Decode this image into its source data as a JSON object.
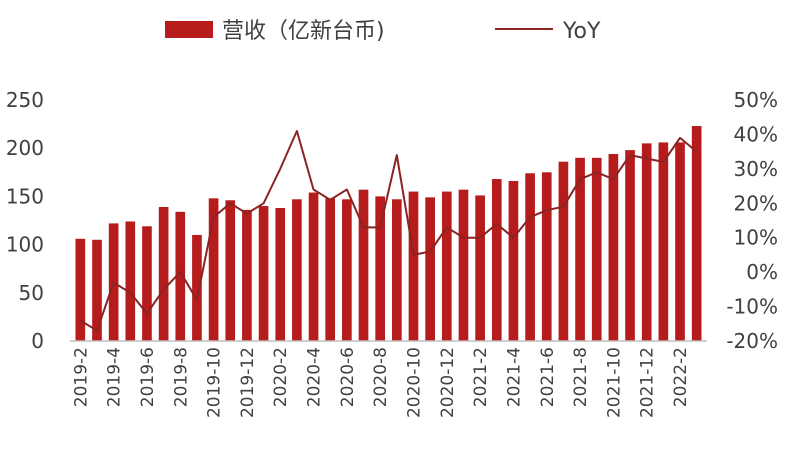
{
  "chart_data": {
    "type": "bar",
    "legend_placement": "top-center",
    "grid": false,
    "colors": {
      "bar": "#b71c1c",
      "line": "#8b2323",
      "text": "#404040",
      "axis": "#bfbfbf"
    },
    "x": [
      "2019-2",
      "2019-3",
      "2019-4",
      "2019-5",
      "2019-6",
      "2019-7",
      "2019-8",
      "2019-9",
      "2019-10",
      "2019-11",
      "2019-12",
      "2020-1",
      "2020-2",
      "2020-3",
      "2020-4",
      "2020-5",
      "2020-6",
      "2020-7",
      "2020-8",
      "2020-9",
      "2020-10",
      "2020-11",
      "2020-12",
      "2021-1",
      "2021-2",
      "2021-3",
      "2021-4",
      "2021-5",
      "2021-6",
      "2021-7",
      "2021-8",
      "2021-9",
      "2021-10",
      "2021-11",
      "2021-12",
      "2022-1",
      "2022-2",
      "2022-3"
    ],
    "x_tick_labels": [
      "2019-2",
      "2019-4",
      "2019-6",
      "2019-8",
      "2019-10",
      "2019-12",
      "2020-2",
      "2020-4",
      "2020-6",
      "2020-8",
      "2020-10",
      "2020-12",
      "2021-2",
      "2021-4",
      "2021-6",
      "2021-8",
      "2021-10",
      "2021-12",
      "2022-2"
    ],
    "series": [
      {
        "name": "营收（亿新台币)",
        "type": "bar",
        "axis": "left",
        "values": [
          106,
          105,
          122,
          124,
          119,
          139,
          134,
          110,
          148,
          146,
          136,
          140,
          138,
          147,
          154,
          148,
          147,
          157,
          150,
          147,
          155,
          149,
          155,
          157,
          151,
          168,
          166,
          174,
          175,
          186,
          190,
          190,
          194,
          198,
          205,
          206,
          206,
          223
        ]
      },
      {
        "name": "YoY",
        "type": "line",
        "axis": "right",
        "values": [
          -14,
          -17,
          -3,
          -6,
          -12,
          -5,
          0,
          -8,
          16,
          20,
          17,
          20,
          30,
          41,
          24,
          21,
          24,
          13,
          13,
          34,
          5,
          6,
          13,
          10,
          10,
          14,
          10,
          16,
          18,
          19,
          27,
          29,
          27,
          34,
          33,
          32,
          39,
          35
        ]
      }
    ],
    "y_left": {
      "ylim": [
        0,
        250
      ],
      "ticks": [
        "0",
        "50",
        "100",
        "150",
        "200",
        "250"
      ]
    },
    "y_right": {
      "ylim": [
        -20,
        50
      ],
      "ticks": [
        "-20%",
        "-10%",
        "0%",
        "10%",
        "20%",
        "30%",
        "40%",
        "50%"
      ]
    }
  }
}
